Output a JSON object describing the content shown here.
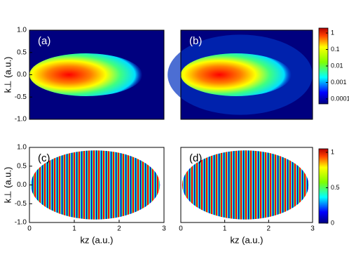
{
  "chart_data": [
    {
      "type": "heatmap",
      "label": "(a)",
      "ylabel": "k⊥ (a.u.)",
      "xlim": [
        0,
        3
      ],
      "ylim": [
        -1,
        1
      ],
      "yticks": [
        {
          "value": 1,
          "label": "1.0"
        },
        {
          "value": 0.5,
          "label": "0.5"
        },
        {
          "value": 0,
          "label": "0.0"
        },
        {
          "value": -0.5,
          "label": "-0.5"
        },
        {
          "value": -1,
          "label": "-1.0"
        }
      ],
      "style": "density"
    },
    {
      "type": "heatmap",
      "label": "(b)",
      "xlim": [
        0,
        3
      ],
      "ylim": [
        -1,
        1
      ],
      "style": "density",
      "colorbar": {
        "log": true,
        "clim": [
          5e-05,
          2
        ],
        "ticks": [
          1,
          0.1,
          0.01,
          0.001,
          0.0001
        ]
      }
    },
    {
      "type": "heatmap",
      "label": "(c)",
      "ylabel": "k⊥ (a.u.)",
      "xlabel": "kz (a.u.)",
      "xlim": [
        0,
        3
      ],
      "ylim": [
        -1,
        1
      ],
      "xticks": [
        0,
        1,
        2,
        3
      ],
      "yticks": [
        {
          "value": 1,
          "label": "1.0"
        },
        {
          "value": 0.5,
          "label": "0.5"
        },
        {
          "value": 0,
          "label": "0.0"
        },
        {
          "value": -0.5,
          "label": "-0.5"
        },
        {
          "value": -1,
          "label": "-1.0"
        }
      ],
      "style": "phase"
    },
    {
      "type": "heatmap",
      "label": "(d)",
      "xlabel": "kz (a.u.)",
      "xlim": [
        0,
        3
      ],
      "ylim": [
        -1,
        1
      ],
      "xticks": [
        0,
        1,
        2,
        3
      ],
      "style": "phase",
      "colorbar": {
        "log": false,
        "clim": [
          0,
          1.05
        ],
        "ticks": [
          0,
          0.5,
          1
        ]
      }
    }
  ]
}
